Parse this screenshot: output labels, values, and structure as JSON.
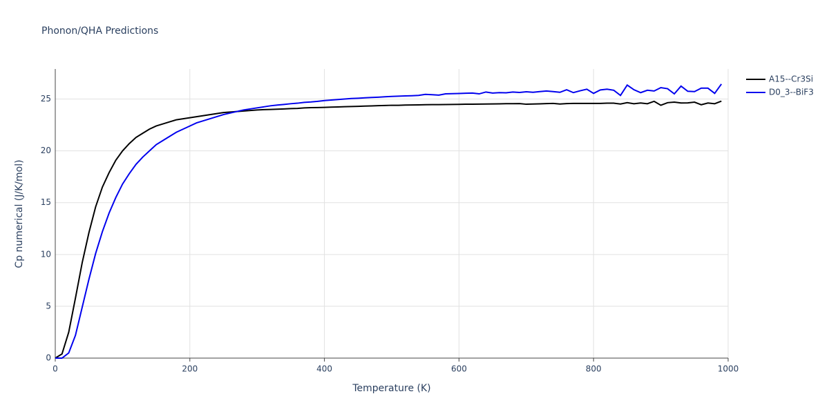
{
  "chart_data": {
    "type": "line",
    "title": "Phonon/QHA Predictions",
    "x_label": "Temperature (K)",
    "y_label": "Cp numerical (J/K/mol)",
    "x": [
      0,
      10,
      20,
      30,
      40,
      50,
      60,
      70,
      80,
      90,
      100,
      110,
      120,
      130,
      140,
      150,
      160,
      170,
      180,
      190,
      200,
      210,
      220,
      230,
      240,
      250,
      260,
      270,
      280,
      290,
      300,
      310,
      320,
      330,
      340,
      350,
      360,
      370,
      380,
      390,
      400,
      410,
      420,
      430,
      440,
      450,
      460,
      470,
      480,
      490,
      500,
      510,
      520,
      530,
      540,
      550,
      560,
      570,
      580,
      590,
      600,
      610,
      620,
      630,
      640,
      650,
      660,
      670,
      680,
      690,
      700,
      710,
      720,
      730,
      740,
      750,
      760,
      770,
      780,
      790,
      800,
      810,
      820,
      830,
      840,
      850,
      860,
      870,
      880,
      890,
      900,
      910,
      920,
      930,
      940,
      950,
      960,
      970,
      980,
      990
    ],
    "series": [
      {
        "name": "A15--Cr3Si",
        "color": "#000000",
        "values": [
          0,
          0.4,
          2.5,
          5.8,
          9.2,
          12.1,
          14.6,
          16.5,
          17.9,
          19.1,
          20.0,
          20.7,
          21.3,
          21.7,
          22.1,
          22.4,
          22.6,
          22.8,
          23.0,
          23.1,
          23.2,
          23.3,
          23.4,
          23.5,
          23.6,
          23.7,
          23.75,
          23.8,
          23.85,
          23.9,
          23.95,
          23.98,
          24.0,
          24.02,
          24.05,
          24.08,
          24.1,
          24.15,
          24.17,
          24.18,
          24.2,
          24.22,
          24.24,
          24.26,
          24.28,
          24.3,
          24.32,
          24.34,
          24.36,
          24.38,
          24.4,
          24.4,
          24.42,
          24.43,
          24.44,
          24.45,
          24.46,
          24.46,
          24.47,
          24.48,
          24.49,
          24.5,
          24.5,
          24.51,
          24.52,
          24.53,
          24.54,
          24.55,
          24.55,
          24.56,
          24.5,
          24.52,
          24.54,
          24.56,
          24.58,
          24.52,
          24.56,
          24.58,
          24.58,
          24.58,
          24.58,
          24.58,
          24.6,
          24.6,
          24.52,
          24.65,
          24.55,
          24.62,
          24.55,
          24.78,
          24.4,
          24.65,
          24.7,
          24.62,
          24.63,
          24.7,
          24.45,
          24.62,
          24.55,
          24.8
        ]
      },
      {
        "name": "D0_3--BiF3",
        "color": "#0000ee",
        "values": [
          0,
          0,
          0.5,
          2.2,
          4.9,
          7.6,
          10.1,
          12.2,
          14.0,
          15.5,
          16.8,
          17.8,
          18.7,
          19.4,
          20.0,
          20.6,
          21.0,
          21.4,
          21.8,
          22.1,
          22.4,
          22.7,
          22.9,
          23.1,
          23.3,
          23.5,
          23.65,
          23.8,
          23.95,
          24.05,
          24.15,
          24.25,
          24.35,
          24.42,
          24.48,
          24.55,
          24.6,
          24.68,
          24.72,
          24.78,
          24.85,
          24.9,
          24.95,
          25.0,
          25.05,
          25.08,
          25.12,
          25.15,
          25.18,
          25.22,
          25.25,
          25.28,
          25.3,
          25.32,
          25.35,
          25.45,
          25.42,
          25.38,
          25.5,
          25.52,
          25.54,
          25.56,
          25.58,
          25.5,
          25.68,
          25.58,
          25.62,
          25.6,
          25.68,
          25.64,
          25.7,
          25.65,
          25.72,
          25.78,
          25.72,
          25.65,
          25.9,
          25.62,
          25.8,
          25.95,
          25.55,
          25.88,
          25.95,
          25.85,
          25.35,
          26.35,
          25.9,
          25.62,
          25.85,
          25.78,
          26.1,
          26.0,
          25.5,
          26.25,
          25.75,
          25.72,
          26.05,
          26.05,
          25.55,
          26.45
        ]
      }
    ],
    "xlim": [
      0,
      1000
    ],
    "xticks": [
      0,
      200,
      400,
      600,
      800,
      1000
    ],
    "ylim": [
      0,
      27.9
    ],
    "yticks": [
      0,
      5,
      10,
      15,
      20,
      25
    ],
    "grid": true
  }
}
